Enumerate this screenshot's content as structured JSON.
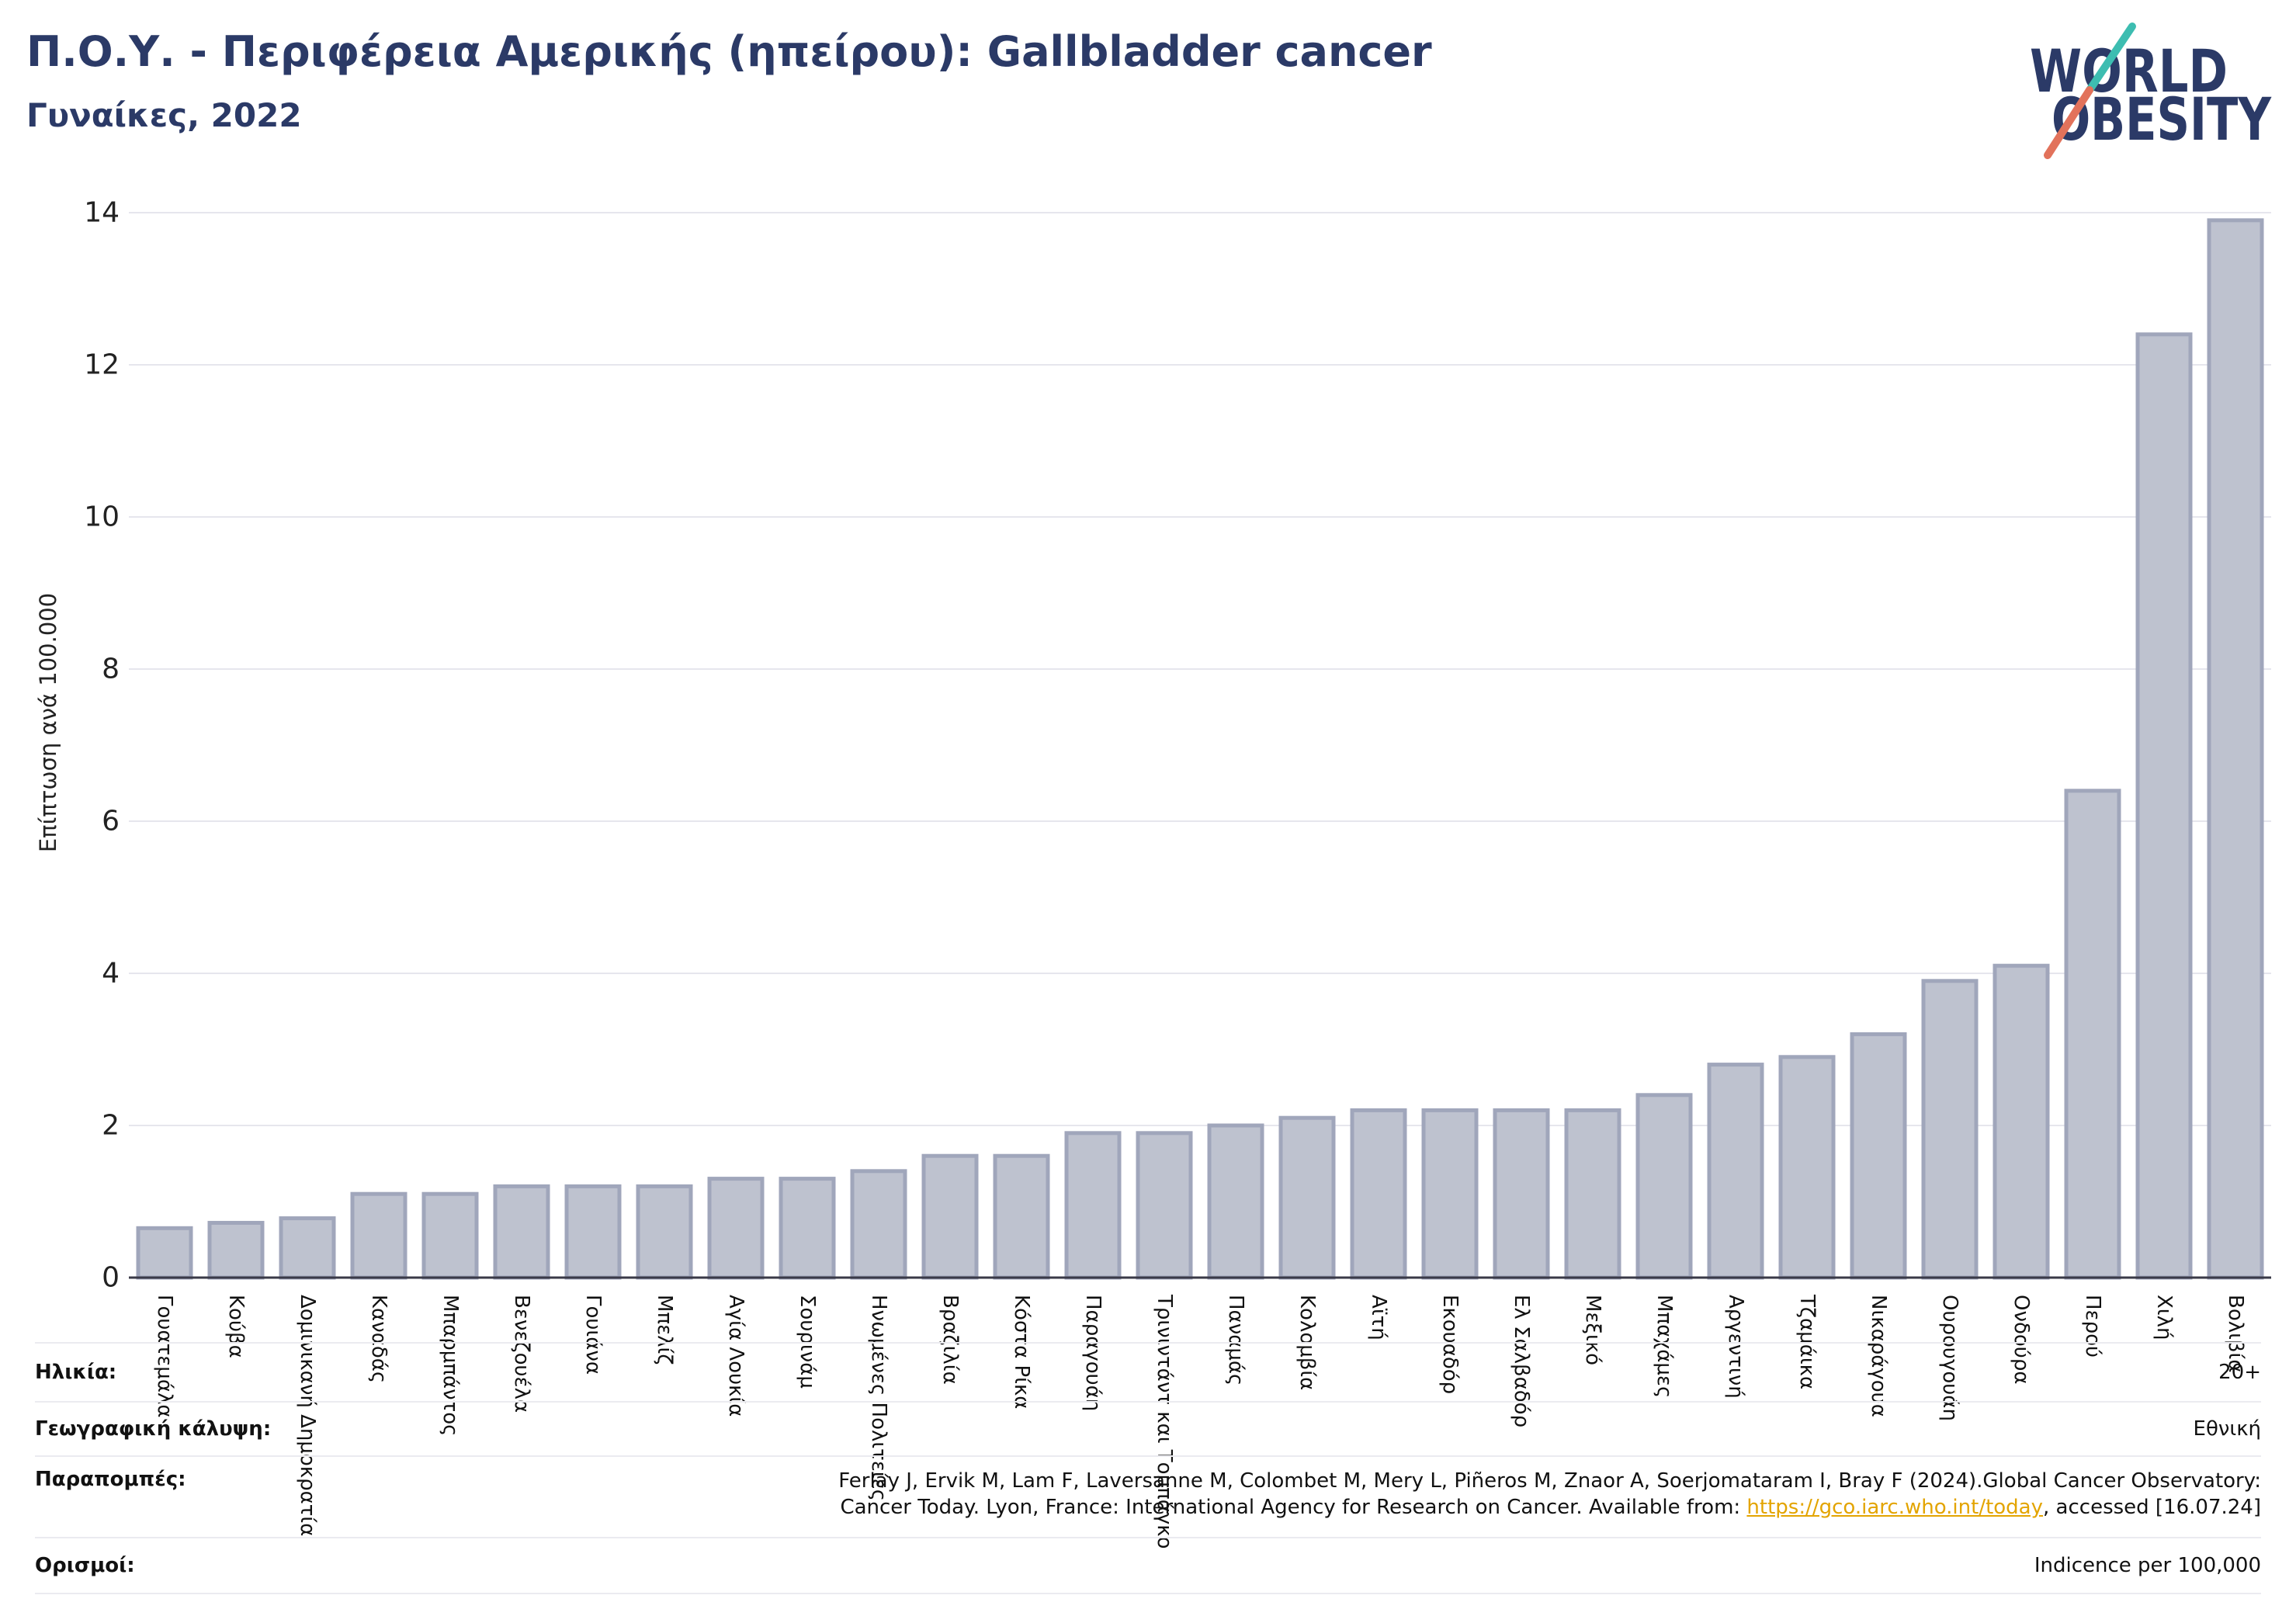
{
  "chart_data": {
    "type": "bar",
    "title": "Π.Ο.Υ. - Περιφέρεια Αμερικής (ηπείρου): Gallbladder cancer",
    "subtitle": "Γυναίκες, 2022",
    "xlabel": "",
    "ylabel": "Επίπτωση ανά 100.000",
    "ylim": [
      0,
      14
    ],
    "yticks": [
      0,
      2,
      4,
      6,
      8,
      10,
      12,
      14
    ],
    "grid": true,
    "categories": [
      "Γουατεμάλα",
      "Κούβα",
      "Δομινικανή Δημοκρατία",
      "Καναδάς",
      "Μπαρμπάντος",
      "Βενεζουέλα",
      "Γουιάνα",
      "Μπελίζ",
      "Αγία Λουκία",
      "Σουρινάμ",
      "Ηνωμένες Πολιτείες",
      "Βραζιλία",
      "Κόστα Ρίκα",
      "Παραγουάη",
      "Τρινιντάντ και Τομπάγκο",
      "Παναμάς",
      "Κολομβία",
      "Αϊτή",
      "Εκουαδόρ",
      "Ελ Σαλβαδόρ",
      "Μεξικό",
      "Μπαχάμες",
      "Αργεντινή",
      "Τζαμάικα",
      "Νικαράγουα",
      "Ουρουγουάη",
      "Ονδούρα",
      "Περού",
      "Χιλή",
      "Βολιβία"
    ],
    "values": [
      0.65,
      0.72,
      0.78,
      1.1,
      1.1,
      1.2,
      1.2,
      1.2,
      1.3,
      1.3,
      1.4,
      1.6,
      1.6,
      1.9,
      1.9,
      2.0,
      2.1,
      2.2,
      2.2,
      2.2,
      2.2,
      2.4,
      2.8,
      2.9,
      3.2,
      3.9,
      4.1,
      6.4,
      12.4,
      13.9
    ]
  },
  "logo": {
    "line1": "WORLD",
    "line2": "OBESITY",
    "icon": "slash-mark"
  },
  "footer": {
    "age": {
      "label": "Ηλικία:",
      "value": "20+"
    },
    "coverage": {
      "label": "Γεωγραφική κάλυψη:",
      "value": "Εθνική"
    },
    "references": {
      "label": "Παραπομπές:",
      "line1": "Ferlay J, Ervik M, Lam F, Laversanne M, Colombet M, Mery L, Piñeros M, Znaor A, Soerjomataram I, Bray F (2024).Global Cancer Observatory:",
      "line2_before": "Cancer Today. Lyon, France: International Agency for Research on Cancer. Available from: ",
      "link": "https://gco.iarc.who.int/today",
      "line2_after": ", accessed [16.07.24]"
    },
    "definitions": {
      "label": "Ορισμοί:",
      "value": "Indicence per 100,000"
    }
  },
  "colors": {
    "title": "#2b3a67",
    "bar_fill": "#bec2cf",
    "bar_stroke": "#a0a6bb",
    "grid": "#e6e6ed",
    "axis": "#3a3a48",
    "logo_navy": "#2b3a67",
    "logo_teal": "#3dbdb1",
    "logo_coral": "#e2725b",
    "link": "#e3a400"
  }
}
